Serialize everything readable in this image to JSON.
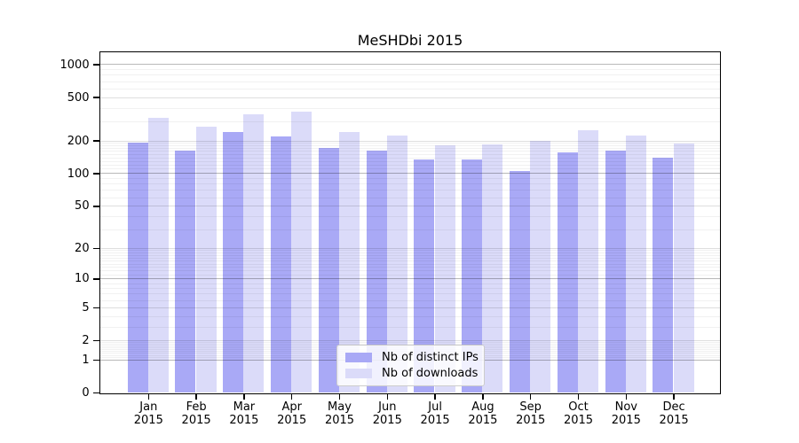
{
  "title": "MeSHDbi 2015",
  "chart_data": {
    "type": "bar",
    "title": "MeSHDbi 2015",
    "categories": [
      "Jan",
      "Feb",
      "Mar",
      "Apr",
      "May",
      "Jun",
      "Jul",
      "Aug",
      "Sep",
      "Oct",
      "Nov",
      "Dec"
    ],
    "x_year": "2015",
    "series": [
      {
        "name": "Nb of distinct IPs",
        "color": "#a9a9f6",
        "values": [
          190,
          160,
          237,
          219,
          172,
          161,
          133,
          133,
          104,
          156,
          162,
          139
        ]
      },
      {
        "name": "Nb of downloads",
        "color": "#dbdbf9",
        "values": [
          320,
          270,
          350,
          370,
          237,
          220,
          182,
          183,
          197,
          247,
          224,
          189
        ]
      }
    ],
    "xlabel": "",
    "ylabel": "",
    "y_axis": {
      "scale": "log1p",
      "tick_labels": [
        0,
        1,
        2,
        5,
        10,
        20,
        50,
        100,
        200,
        500,
        1000
      ],
      "ylim": [
        0,
        1290
      ]
    },
    "legend": {
      "position": "inside-bottom-center",
      "entries": [
        "Nb of distinct IPs",
        "Nb of downloads"
      ]
    },
    "grid": true
  },
  "colors": {
    "ips_bar": "#a9a9f6",
    "downloads_bar": "#dbdbf9",
    "spine": "#000000",
    "background": "#ffffff"
  }
}
